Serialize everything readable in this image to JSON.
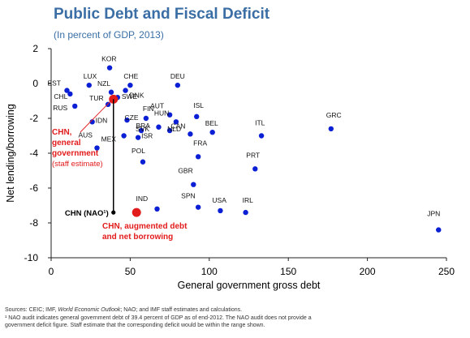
{
  "title": "Public Debt and Fiscal Deficit",
  "subtitle": "(In percent of GDP, 2013)",
  "chart_data": {
    "type": "scatter",
    "title": "Public Debt and Fiscal Deficit",
    "subtitle": "(In percent of GDP, 2013)",
    "xlabel": "General government gross debt",
    "ylabel": "Net lending/borrowing",
    "xlim": [
      0,
      250
    ],
    "ylim": [
      -10,
      2
    ],
    "xticks": [
      0,
      50,
      100,
      150,
      200,
      250
    ],
    "yticks": [
      2,
      0,
      -2,
      -4,
      -6,
      -8,
      -10
    ],
    "grid": false,
    "points": [
      {
        "label": "KOR",
        "x": 37,
        "y": 0.9
      },
      {
        "label": "EST",
        "x": 10,
        "y": -0.4
      },
      {
        "label": "LUX",
        "x": 24,
        "y": -0.1
      },
      {
        "label": "CHE",
        "x": 50,
        "y": -0.1
      },
      {
        "label": "DEU",
        "x": 80,
        "y": -0.1
      },
      {
        "label": "CHL",
        "x": 12,
        "y": -0.6
      },
      {
        "label": "NZL",
        "x": 38,
        "y": -0.5
      },
      {
        "label": "DNK",
        "x": 47,
        "y": -0.4
      },
      {
        "label": "RUS",
        "x": 15,
        "y": -1.3
      },
      {
        "label": "TUR",
        "x": 36,
        "y": -1.2
      },
      {
        "label": "SWE",
        "x": 42,
        "y": -0.8
      },
      {
        "label": "AUT",
        "x": 75,
        "y": -1.8
      },
      {
        "label": "ISL",
        "x": 92,
        "y": -1.9
      },
      {
        "label": "IDN",
        "x": 26,
        "y": -2.2
      },
      {
        "label": "CZE",
        "x": 48,
        "y": -2.1
      },
      {
        "label": "FIN",
        "x": 60,
        "y": -2.0
      },
      {
        "label": "HUN",
        "x": 79,
        "y": -2.2
      },
      {
        "label": "GRC",
        "x": 177,
        "y": -2.6
      },
      {
        "label": "SVK",
        "x": 57,
        "y": -2.7
      },
      {
        "label": "BRA",
        "x": 68,
        "y": -2.5
      },
      {
        "label": "NLD",
        "x": 75,
        "y": -2.7
      },
      {
        "label": "CAN",
        "x": 88,
        "y": -2.9
      },
      {
        "label": "BEL",
        "x": 102,
        "y": -2.8
      },
      {
        "label": "ITL",
        "x": 133,
        "y": -3.0
      },
      {
        "label": "MEX",
        "x": 46,
        "y": -3.0
      },
      {
        "label": "ISR",
        "x": 55,
        "y": -3.1
      },
      {
        "label": "AUS",
        "x": 29,
        "y": -3.7
      },
      {
        "label": "POL",
        "x": 58,
        "y": -4.5
      },
      {
        "label": "FRA",
        "x": 93,
        "y": -4.2
      },
      {
        "label": "PRT",
        "x": 129,
        "y": -4.9
      },
      {
        "label": "GBR",
        "x": 90,
        "y": -5.8
      },
      {
        "label": "IND",
        "x": 67,
        "y": -7.2
      },
      {
        "label": "SPN",
        "x": 93,
        "y": -7.1
      },
      {
        "label": "USA",
        "x": 107,
        "y": -7.3
      },
      {
        "label": "IRL",
        "x": 123,
        "y": -7.4
      },
      {
        "label": "JPN",
        "x": 245,
        "y": -8.4
      },
      {
        "label": "CHN (NAO¹)",
        "x": 39.4,
        "y": -7.4,
        "style": "nao"
      },
      {
        "label": "CHN, general government (staff estimate)",
        "x": 39.4,
        "y": -0.9,
        "style": "highlight"
      },
      {
        "label": "CHN, augmented debt and net borrowing",
        "x": 54,
        "y": -7.4,
        "style": "highlight"
      }
    ],
    "annotations": [
      {
        "text": "CHN, general government",
        "sub": "(staff estimate)"
      },
      {
        "text": "CHN, augmented debt and net borrowing"
      }
    ],
    "colors": {
      "points": "#0b1fd4",
      "highlight": "#e21b1b",
      "title": "#3a6ea5",
      "axis": "#222222"
    }
  },
  "footnotes": {
    "sources_prefix": "Sources: CEIC; IMF, ",
    "sources_italic": "World Economic Outlook",
    "sources_suffix": "; NAO; and IMF staff estimates and calculations.",
    "note_line1": "¹ NAO audit indicates general government debt of 39.4 percent of GDP as of end-2012. The NAO audit does not provide a",
    "note_line2": "government deficit figure. Staff estimate that the corresponding deficit would be within the range shown."
  }
}
